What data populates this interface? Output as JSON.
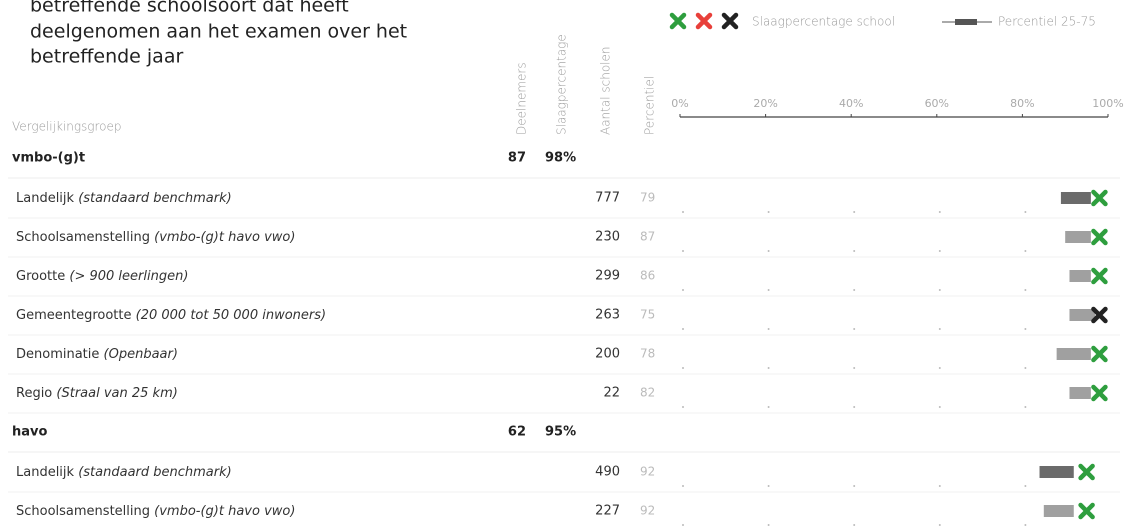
{
  "intro": [
    "betreffende schoolsoort dat heeft",
    "deelgenomen aan het examen over het",
    "betreffende jaar"
  ],
  "legend": {
    "marker_label": "Slaagpercentage school",
    "range_label": "Percentiel 25-75",
    "marker_colors": [
      "#2e9e3e",
      "#e8403a",
      "#222222"
    ],
    "range_color": "#555555"
  },
  "columns": {
    "group": "Vergelijkingsgroep",
    "participants": "Deelnemers",
    "pass_rate": "Slaagpercentage",
    "schools": "Aantal scholen",
    "percentile": "Percentiel"
  },
  "axis": {
    "xlim": [
      0,
      100
    ],
    "xticks": [
      {
        "value": 0,
        "label": "0%"
      },
      {
        "value": 20,
        "label": "20%"
      },
      {
        "value": 40,
        "label": "40%"
      },
      {
        "value": 60,
        "label": "60%"
      },
      {
        "value": 80,
        "label": "80%"
      },
      {
        "value": 100,
        "label": "100%"
      }
    ]
  },
  "groups": [
    {
      "name": "vmbo-(g)t",
      "participants": 87,
      "pass_rate": {
        "value": 98,
        "label": "98%"
      },
      "rows": [
        {
          "name": "Landelijk",
          "detail": "(standaard benchmark)",
          "schools": 777,
          "percentile": 79,
          "p25": 89,
          "p75": 96,
          "bar_color": "#6b6b6b",
          "marker_color": "#2e9e3e"
        },
        {
          "name": "Schoolsamenstelling",
          "detail": "(vmbo-(g)t havo vwo)",
          "schools": 230,
          "percentile": 87,
          "p25": 90,
          "p75": 96,
          "bar_color": "#a0a0a0",
          "marker_color": "#2e9e3e"
        },
        {
          "name": "Grootte",
          "detail": "(> 900 leerlingen)",
          "schools": 299,
          "percentile": 86,
          "p25": 91,
          "p75": 96,
          "bar_color": "#a0a0a0",
          "marker_color": "#2e9e3e"
        },
        {
          "name": "Gemeentegrootte",
          "detail": "(20 000 tot 50 000 inwoners)",
          "schools": 263,
          "percentile": 75,
          "p25": 91,
          "p75": 97,
          "bar_color": "#a0a0a0",
          "marker_color": "#222222"
        },
        {
          "name": "Denominatie",
          "detail": "(Openbaar)",
          "schools": 200,
          "percentile": 78,
          "p25": 88,
          "p75": 96,
          "bar_color": "#a0a0a0",
          "marker_color": "#2e9e3e"
        },
        {
          "name": "Regio",
          "detail": "(Straal van 25 km)",
          "schools": 22,
          "percentile": 82,
          "p25": 91,
          "p75": 96,
          "bar_color": "#a0a0a0",
          "marker_color": "#2e9e3e"
        }
      ]
    },
    {
      "name": "havo",
      "participants": 62,
      "pass_rate": {
        "value": 95,
        "label": "95%"
      },
      "rows": [
        {
          "name": "Landelijk",
          "detail": "(standaard benchmark)",
          "schools": 490,
          "percentile": 92,
          "p25": 84,
          "p75": 92,
          "bar_color": "#6b6b6b",
          "marker_color": "#2e9e3e"
        },
        {
          "name": "Schoolsamenstelling",
          "detail": "(vmbo-(g)t havo vwo)",
          "schools": 227,
          "percentile": 92,
          "p25": 85,
          "p75": 92,
          "bar_color": "#a0a0a0",
          "marker_color": "#2e9e3e"
        }
      ]
    }
  ]
}
